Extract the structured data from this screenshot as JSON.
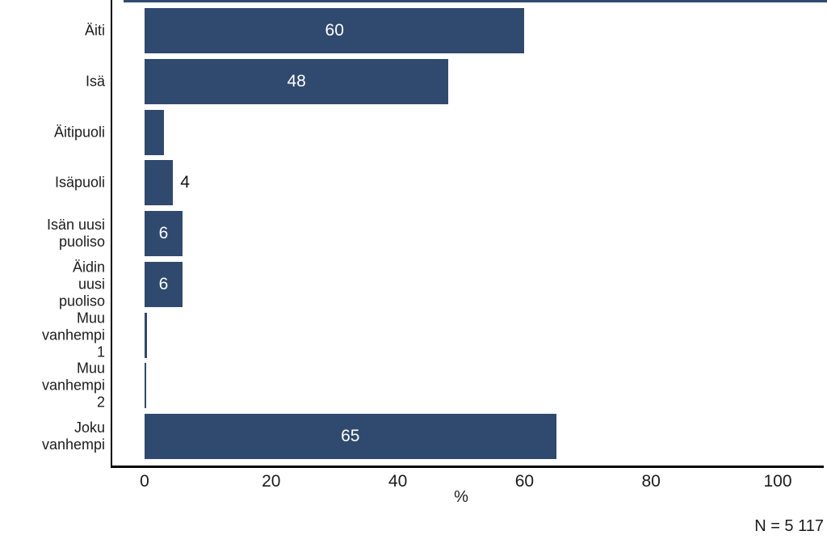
{
  "chart_data": {
    "type": "bar",
    "orientation": "horizontal",
    "title": "",
    "xlabel": "%",
    "ylabel": "",
    "xlim": [
      0,
      100
    ],
    "x_ticks": [
      0,
      20,
      40,
      60,
      80,
      100
    ],
    "grid": false,
    "legend": false,
    "bar_color": "#2F4A6E",
    "axis_color": "#000000",
    "inside_label_color": "#ffffff",
    "outside_label_color": "#141414",
    "note": "N = 5 117",
    "categories": [
      "Äiti",
      "Isä",
      "Äitipuoli",
      "Isäpuoli",
      "Isän uusi puoliso",
      "Äidin uusi puoliso",
      "Muu vanhempi 1",
      "Muu vanhempi 2",
      "Joku vanhempi"
    ],
    "category_lines": [
      [
        "Äiti"
      ],
      [
        "Isä"
      ],
      [
        "Äitipuoli"
      ],
      [
        "Isäpuoli"
      ],
      [
        "Isän uusi",
        "puoliso"
      ],
      [
        "Äidin",
        "uusi",
        "puoliso"
      ],
      [
        "Muu",
        "vanhempi",
        "1"
      ],
      [
        "Muu",
        "vanhempi",
        "2"
      ],
      [
        "Joku",
        "vanhempi"
      ]
    ],
    "values": [
      60,
      48,
      3,
      4.5,
      6,
      6,
      0.4,
      0.3,
      65
    ],
    "bar_labels": [
      "60",
      "48",
      "",
      "4",
      "6",
      "6",
      "",
      "",
      "65"
    ],
    "bar_label_positions": [
      "inside",
      "inside",
      "none",
      "outside",
      "inside",
      "inside",
      "none",
      "none",
      "inside"
    ]
  }
}
